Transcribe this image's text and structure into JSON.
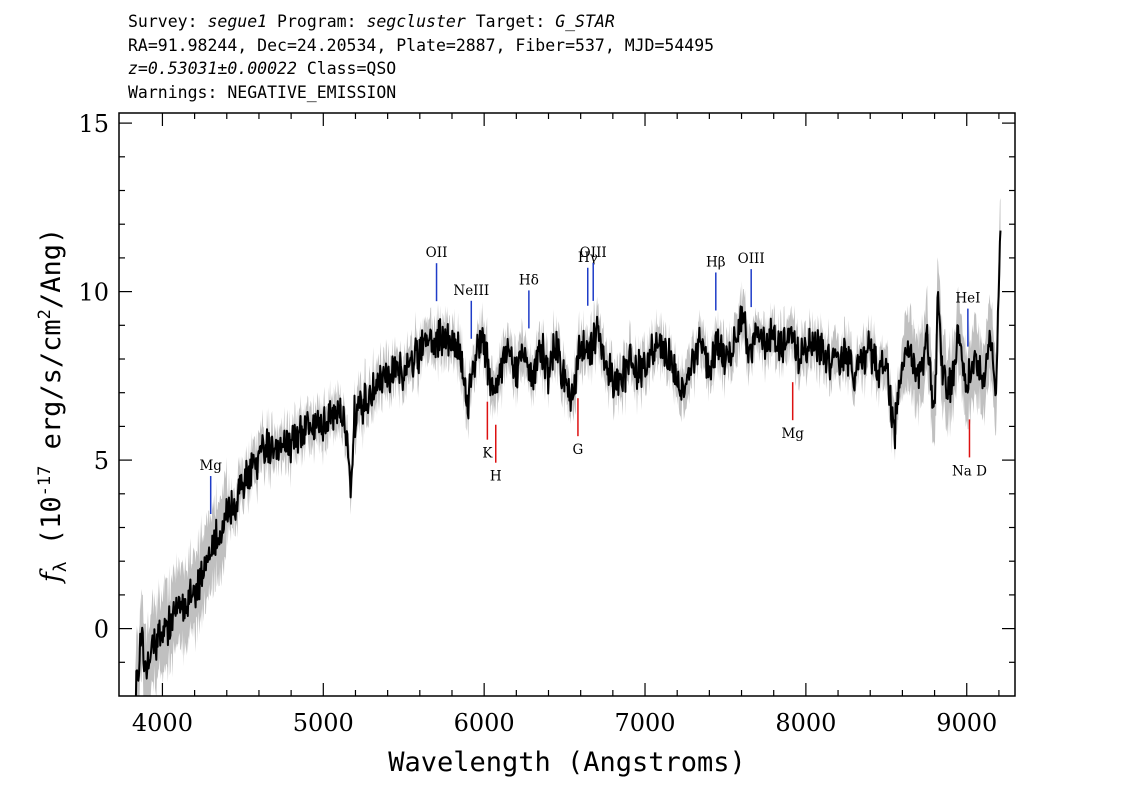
{
  "header": {
    "line1": {
      "survey_label": "Survey: ",
      "survey": "segue1",
      "program_label": " Program: ",
      "program": "segcluster",
      "target_label": " Target: ",
      "target": "G_STAR"
    },
    "line2": "RA=91.98244, Dec=24.20534, Plate=2887, Fiber=537, MJD=54495",
    "line3": {
      "redshift": "z=0.53031±0.00022",
      "class": " Class=QSO"
    },
    "line4": "Warnings: NEGATIVE_EMISSION"
  },
  "chart_data": {
    "type": "line",
    "xlabel": "Wavelength (Angstroms)",
    "ylabel": "f_λ (10^-17 erg/s/cm²/Ang)",
    "xlim": [
      3730,
      9300
    ],
    "ylim": [
      -2,
      15.3
    ],
    "xticks": [
      "4000",
      "5000",
      "6000",
      "7000",
      "8000",
      "9000"
    ],
    "yticks": [
      "0",
      "5",
      "10",
      "15"
    ],
    "colors": {
      "flux": "#000000",
      "error_band": "#c0c0c0",
      "emission": "#1e3cc8",
      "absorption": "#dd1111"
    },
    "series": [
      {
        "x": [
          3830,
          3870,
          3900,
          3950,
          4000,
          4050,
          4100,
          4150,
          4200,
          4250,
          4300,
          4350,
          4400,
          4450,
          4500,
          4550,
          4600,
          4650,
          4700,
          4750,
          4800,
          4850,
          4900,
          4950,
          5000,
          5050,
          5100,
          5150,
          5170,
          5190,
          5250,
          5300,
          5350,
          5400,
          5450,
          5500,
          5550,
          5600,
          5650,
          5700,
          5750,
          5800,
          5850,
          5900,
          5920,
          5950,
          6000,
          6030,
          6060,
          6100,
          6150,
          6200,
          6250,
          6300,
          6350,
          6400,
          6450,
          6500,
          6550,
          6580,
          6620,
          6660,
          6700,
          6750,
          6800,
          6850,
          6900,
          6950,
          7000,
          7050,
          7100,
          7150,
          7200,
          7250,
          7300,
          7350,
          7400,
          7450,
          7500,
          7550,
          7600,
          7650,
          7700,
          7750,
          7800,
          7850,
          7900,
          7950,
          8000,
          8050,
          8100,
          8150,
          8200,
          8250,
          8300,
          8350,
          8400,
          8450,
          8500,
          8550,
          8600,
          8650,
          8700,
          8750,
          8800,
          8820,
          8850,
          8900,
          8950,
          9000,
          9050,
          9100,
          9150,
          9180,
          9210
        ],
        "y": [
          -1.8,
          -0.5,
          -1.2,
          -0.3,
          -0.2,
          0.3,
          0.5,
          0.8,
          1.2,
          1.6,
          2.2,
          2.8,
          3.3,
          3.8,
          4.3,
          4.6,
          5.0,
          5.3,
          5.5,
          5.6,
          5.5,
          5.7,
          5.9,
          6.1,
          6.1,
          6.3,
          6.5,
          5.9,
          3.5,
          6.2,
          6.6,
          7.0,
          7.3,
          7.4,
          7.6,
          7.7,
          7.9,
          8.3,
          8.6,
          8.5,
          8.7,
          8.4,
          8.2,
          6.5,
          7.4,
          8.2,
          8.6,
          7.6,
          7.1,
          7.6,
          8.4,
          7.6,
          8.1,
          7.4,
          8.3,
          7.6,
          8.5,
          7.4,
          6.8,
          8.0,
          8.5,
          8.3,
          8.8,
          7.9,
          7.4,
          7.3,
          7.9,
          7.7,
          7.8,
          8.2,
          8.4,
          8.0,
          7.4,
          7.0,
          8.1,
          8.6,
          7.6,
          8.4,
          8.0,
          8.3,
          9.3,
          8.2,
          8.9,
          8.5,
          8.6,
          8.2,
          8.8,
          8.0,
          8.2,
          8.6,
          8.3,
          7.8,
          8.0,
          8.2,
          7.4,
          8.0,
          8.4,
          7.6,
          7.8,
          5.8,
          7.8,
          8.3,
          7.2,
          8.5,
          6.5,
          9.8,
          7.6,
          7.2,
          8.8,
          7.0,
          8.2,
          7.5,
          8.6,
          6.8,
          11.8
        ]
      }
    ],
    "annotations": {
      "emission": [
        {
          "label": "Mg",
          "x": 4300
        },
        {
          "label": "OII",
          "x": 5704
        },
        {
          "label": "NeIII",
          "x": 5920
        },
        {
          "label": "Hδ",
          "x": 6278
        },
        {
          "label": "Hγ",
          "x": 6644
        },
        {
          "label": "OIII",
          "x": 6678
        },
        {
          "label": "Hβ",
          "x": 7440
        },
        {
          "label": "OIII",
          "x": 7660
        },
        {
          "label": "HeI",
          "x": 9007
        }
      ],
      "absorption": [
        {
          "label": "K",
          "x": 6020
        },
        {
          "label": "H",
          "x": 6072
        },
        {
          "label": "G",
          "x": 6583
        },
        {
          "label": "Mg",
          "x": 7918
        },
        {
          "label": "Na D",
          "x": 9017
        }
      ]
    }
  }
}
